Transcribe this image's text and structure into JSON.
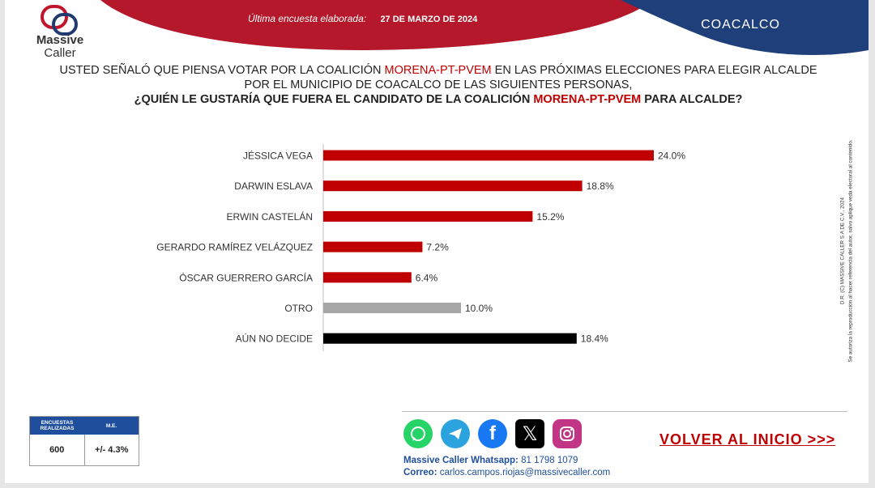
{
  "header": {
    "logo_name": "Massive",
    "logo_sub": "Caller",
    "survey_label": "Última encuesta elaborada:",
    "survey_date": "27 DE MARZO DE 2024",
    "location": "COACALCO"
  },
  "question": {
    "line1_a": "USTED SEÑALÓ QUE PIENSA VOTAR POR LA COALICIÓN ",
    "line1_b": "MORENA-PT-PVEM",
    "line1_c": " EN LAS PRÓXIMAS ELECCIONES PARA ELEGIR ALCALDE",
    "line2": "POR EL MUNICIPIO DE COACALCO DE LAS SIGUIENTES PERSONAS,",
    "line3_a": "¿QUIÉN LE GUSTARÍA QUE FUERA EL CANDIDATO DE LA COALICIÓN ",
    "line3_b": "MORENA-PT-PVEM",
    "line3_c": " PARA ALCALDE?"
  },
  "chart_data": {
    "type": "bar",
    "orientation": "horizontal",
    "categories": [
      "JÉSSICA VEGA",
      "DARWIN ESLAVA",
      "ERWIN CASTELÁN",
      "GERARDO RAMÍREZ VELÁZQUEZ",
      "ÓSCAR GUERRERO GARCÍA",
      "OTRO",
      "AÚN NO DECIDE"
    ],
    "values": [
      24.0,
      18.8,
      15.2,
      7.2,
      6.4,
      10.0,
      18.4
    ],
    "labels": [
      "24.0%",
      "18.8%",
      "15.2%",
      "7.2%",
      "6.4%",
      "10.0%",
      "18.4%"
    ],
    "colors": [
      "#c00000",
      "#c00000",
      "#c00000",
      "#c00000",
      "#c00000",
      "#a6a6a6",
      "#000000"
    ],
    "xlim": [
      0,
      25
    ],
    "grid": false,
    "legend": "none"
  },
  "side_note": {
    "line1": "D.R. (C) MASSIVE CALLER S.A DE C.V., 2024",
    "line2": "Se autoriza la reproducción al hacer referencia del autor, salvo aplique veda electoral al contenido."
  },
  "stats": {
    "h1": "ENCUESTAS REALIZADAS",
    "h2": "M.E.",
    "v1": "600",
    "v2": "+/- 4.3%"
  },
  "footer": {
    "whatsapp_label": "Massive Caller Whatsapp:",
    "whatsapp_number": "81 1798 1079",
    "email_label": "Correo:",
    "email": "carlos.campos.riojas@massivecaller.com",
    "back_label": "VOLVER AL INICIO >>>",
    "icons": [
      "whatsapp-icon",
      "telegram-icon",
      "facebook-icon",
      "x-icon",
      "instagram-icon"
    ]
  }
}
